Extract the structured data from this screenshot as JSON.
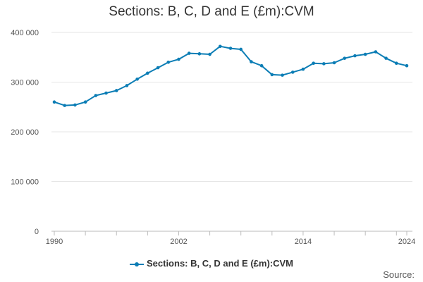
{
  "chart_data": {
    "type": "line",
    "title": "Sections: B, C, D and E (£m):CVM",
    "xlabel": "",
    "ylabel": "",
    "xlim": [
      1990,
      2024
    ],
    "ylim": [
      0,
      400000
    ],
    "x_ticks": [
      "1990",
      "2002",
      "2014",
      "2024"
    ],
    "y_ticks": [
      "0",
      "100 000",
      "200 000",
      "300 000",
      "400 000"
    ],
    "grid": true,
    "legend_position": "bottom",
    "color": "#0b7db5",
    "series": [
      {
        "name": "Sections: B, C, D and E (£m):CVM",
        "x": [
          1990,
          1991,
          1992,
          1993,
          1994,
          1995,
          1996,
          1997,
          1998,
          1999,
          2000,
          2001,
          2002,
          2003,
          2004,
          2005,
          2006,
          2007,
          2008,
          2009,
          2010,
          2011,
          2012,
          2013,
          2014,
          2015,
          2016,
          2017,
          2018,
          2019,
          2020,
          2021,
          2022,
          2023,
          2024
        ],
        "values": [
          260000,
          253000,
          254000,
          260000,
          273000,
          278000,
          283000,
          293000,
          306000,
          318000,
          329000,
          340000,
          346000,
          358000,
          357000,
          356000,
          372000,
          368000,
          366000,
          341000,
          333000,
          315000,
          314000,
          320000,
          326000,
          338000,
          337000,
          339000,
          348000,
          353000,
          356000,
          361000,
          348000,
          338000,
          333000
        ]
      }
    ]
  },
  "legend": {
    "label": "Sections: B, C, D and E (£m):CVM"
  },
  "source_label": "Source:"
}
